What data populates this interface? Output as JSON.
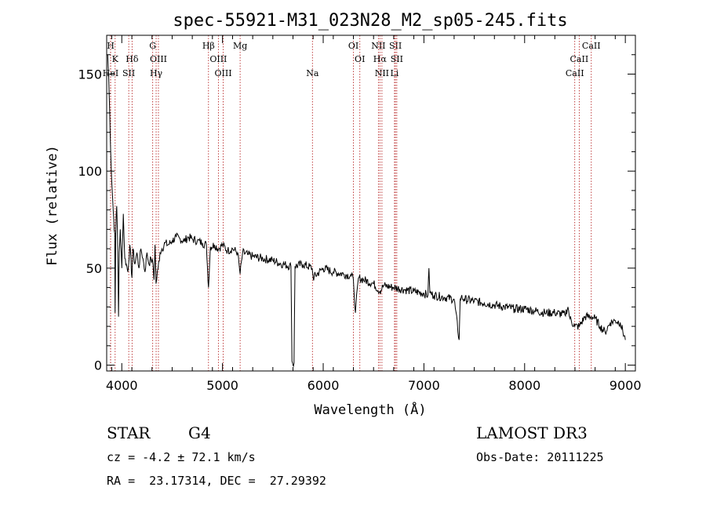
{
  "chart_data": {
    "type": "line",
    "title": "spec-55921-M31_023N28_M2_sp05-245.fits",
    "xlabel": "Wavelength (Å)",
    "ylabel": "Flux (relative)",
    "xlim": [
      3850,
      9100
    ],
    "ylim": [
      -3,
      170
    ],
    "xticks": [
      4000,
      5000,
      6000,
      7000,
      8000,
      9000
    ],
    "yticks": [
      0,
      50,
      100,
      150
    ],
    "series": [
      {
        "name": "spectrum",
        "x": [
          3860,
          3870,
          3880,
          3890,
          3900,
          3910,
          3920,
          3930,
          3933,
          3940,
          3950,
          3960,
          3968,
          3975,
          3985,
          4000,
          4015,
          4030,
          4045,
          4060,
          4080,
          4101,
          4110,
          4130,
          4150,
          4170,
          4190,
          4210,
          4230,
          4250,
          4270,
          4290,
          4310,
          4320,
          4330,
          4340,
          4360,
          4380,
          4400,
          4430,
          4460,
          4500,
          4540,
          4580,
          4620,
          4660,
          4700,
          4750,
          4800,
          4840,
          4861,
          4880,
          4920,
          4960,
          5000,
          5050,
          5100,
          5150,
          5175,
          5200,
          5250,
          5300,
          5400,
          5500,
          5600,
          5680,
          5690,
          5700,
          5710,
          5720,
          5800,
          5890,
          5900,
          6000,
          6100,
          6200,
          6280,
          6300,
          6320,
          6350,
          6400,
          6500,
          6562,
          6600,
          6700,
          6800,
          6900,
          7000,
          7040,
          7050,
          7060,
          7100,
          7200,
          7300,
          7350,
          7360,
          7370,
          7400,
          7500,
          7600,
          7700,
          7800,
          7900,
          8000,
          8100,
          8200,
          8300,
          8400,
          8430,
          8450,
          8498,
          8542,
          8600,
          8662,
          8700,
          8750,
          8800,
          8850,
          8900,
          8950,
          9000
        ],
        "y": [
          160,
          148,
          130,
          110,
          95,
          85,
          75,
          68,
          27,
          70,
          82,
          60,
          25,
          58,
          70,
          50,
          78,
          55,
          52,
          48,
          62,
          45,
          60,
          52,
          58,
          50,
          60,
          55,
          48,
          58,
          52,
          55,
          52,
          44,
          62,
          42,
          50,
          58,
          60,
          63,
          62,
          64,
          66,
          65,
          64,
          66,
          65,
          64,
          63,
          62,
          40,
          61,
          62,
          60,
          62,
          59,
          60,
          58,
          47,
          58,
          57,
          56,
          55,
          54,
          52,
          51,
          2,
          0,
          1,
          51,
          52,
          50,
          45,
          50,
          48,
          47,
          46,
          44,
          27,
          45,
          44,
          42,
          38,
          41,
          40,
          39,
          38,
          37,
          36,
          50,
          37,
          36,
          35,
          34,
          13,
          34,
          35,
          34,
          33,
          32,
          31,
          30,
          29,
          29,
          28,
          27,
          27,
          26,
          30,
          24,
          20,
          20,
          25,
          25,
          24,
          20,
          17,
          22,
          23,
          22,
          13
        ]
      }
    ],
    "lines": [
      {
        "name": "H",
        "row": 1,
        "wl": 3889
      },
      {
        "name": "K",
        "row": 2,
        "wl": 3934
      },
      {
        "name": "HeI",
        "row": 3,
        "wl": 3889
      },
      {
        "name": "SII",
        "row": 3,
        "wl": 4069
      },
      {
        "name": "Hδ",
        "row": 2,
        "wl": 4102
      },
      {
        "name": "G",
        "row": 1,
        "wl": 4307
      },
      {
        "name": "OIII",
        "row": 2,
        "wl": 4364
      },
      {
        "name": "Hγ",
        "row": 3,
        "wl": 4341
      },
      {
        "name": "Hβ",
        "row": 1,
        "wl": 4861
      },
      {
        "name": "OIII",
        "row": 2,
        "wl": 4959
      },
      {
        "name": "OIII",
        "row": 3,
        "wl": 5007
      },
      {
        "name": "Mg",
        "row": 1,
        "wl": 5175
      },
      {
        "name": "Na",
        "row": 3,
        "wl": 5893
      },
      {
        "name": "OI",
        "row": 1,
        "wl": 6300
      },
      {
        "name": "OI",
        "row": 2,
        "wl": 6364
      },
      {
        "name": "NII",
        "row": 1,
        "wl": 6548
      },
      {
        "name": "SII",
        "row": 1,
        "wl": 6717
      },
      {
        "name": "Hα",
        "row": 2,
        "wl": 6563
      },
      {
        "name": "SII",
        "row": 2,
        "wl": 6731
      },
      {
        "name": "NII",
        "row": 3,
        "wl": 6583
      },
      {
        "name": "Li",
        "row": 3,
        "wl": 6708
      },
      {
        "name": "CaII",
        "row": 1,
        "wl": 8662
      },
      {
        "name": "CaII",
        "row": 2,
        "wl": 8542
      },
      {
        "name": "CaII",
        "row": 3,
        "wl": 8498
      }
    ],
    "colors": {
      "spectrum": "#000000",
      "lines": "#b01010",
      "axes": "#000000"
    }
  },
  "info": {
    "class": "STAR",
    "subclass": "G4",
    "survey": "LAMOST DR3",
    "cz": "cz = -4.2 ± 72.1 km/s",
    "obsdate": "Obs-Date: 20111225",
    "radec": "RA =  23.17314, DEC =  27.29392"
  }
}
